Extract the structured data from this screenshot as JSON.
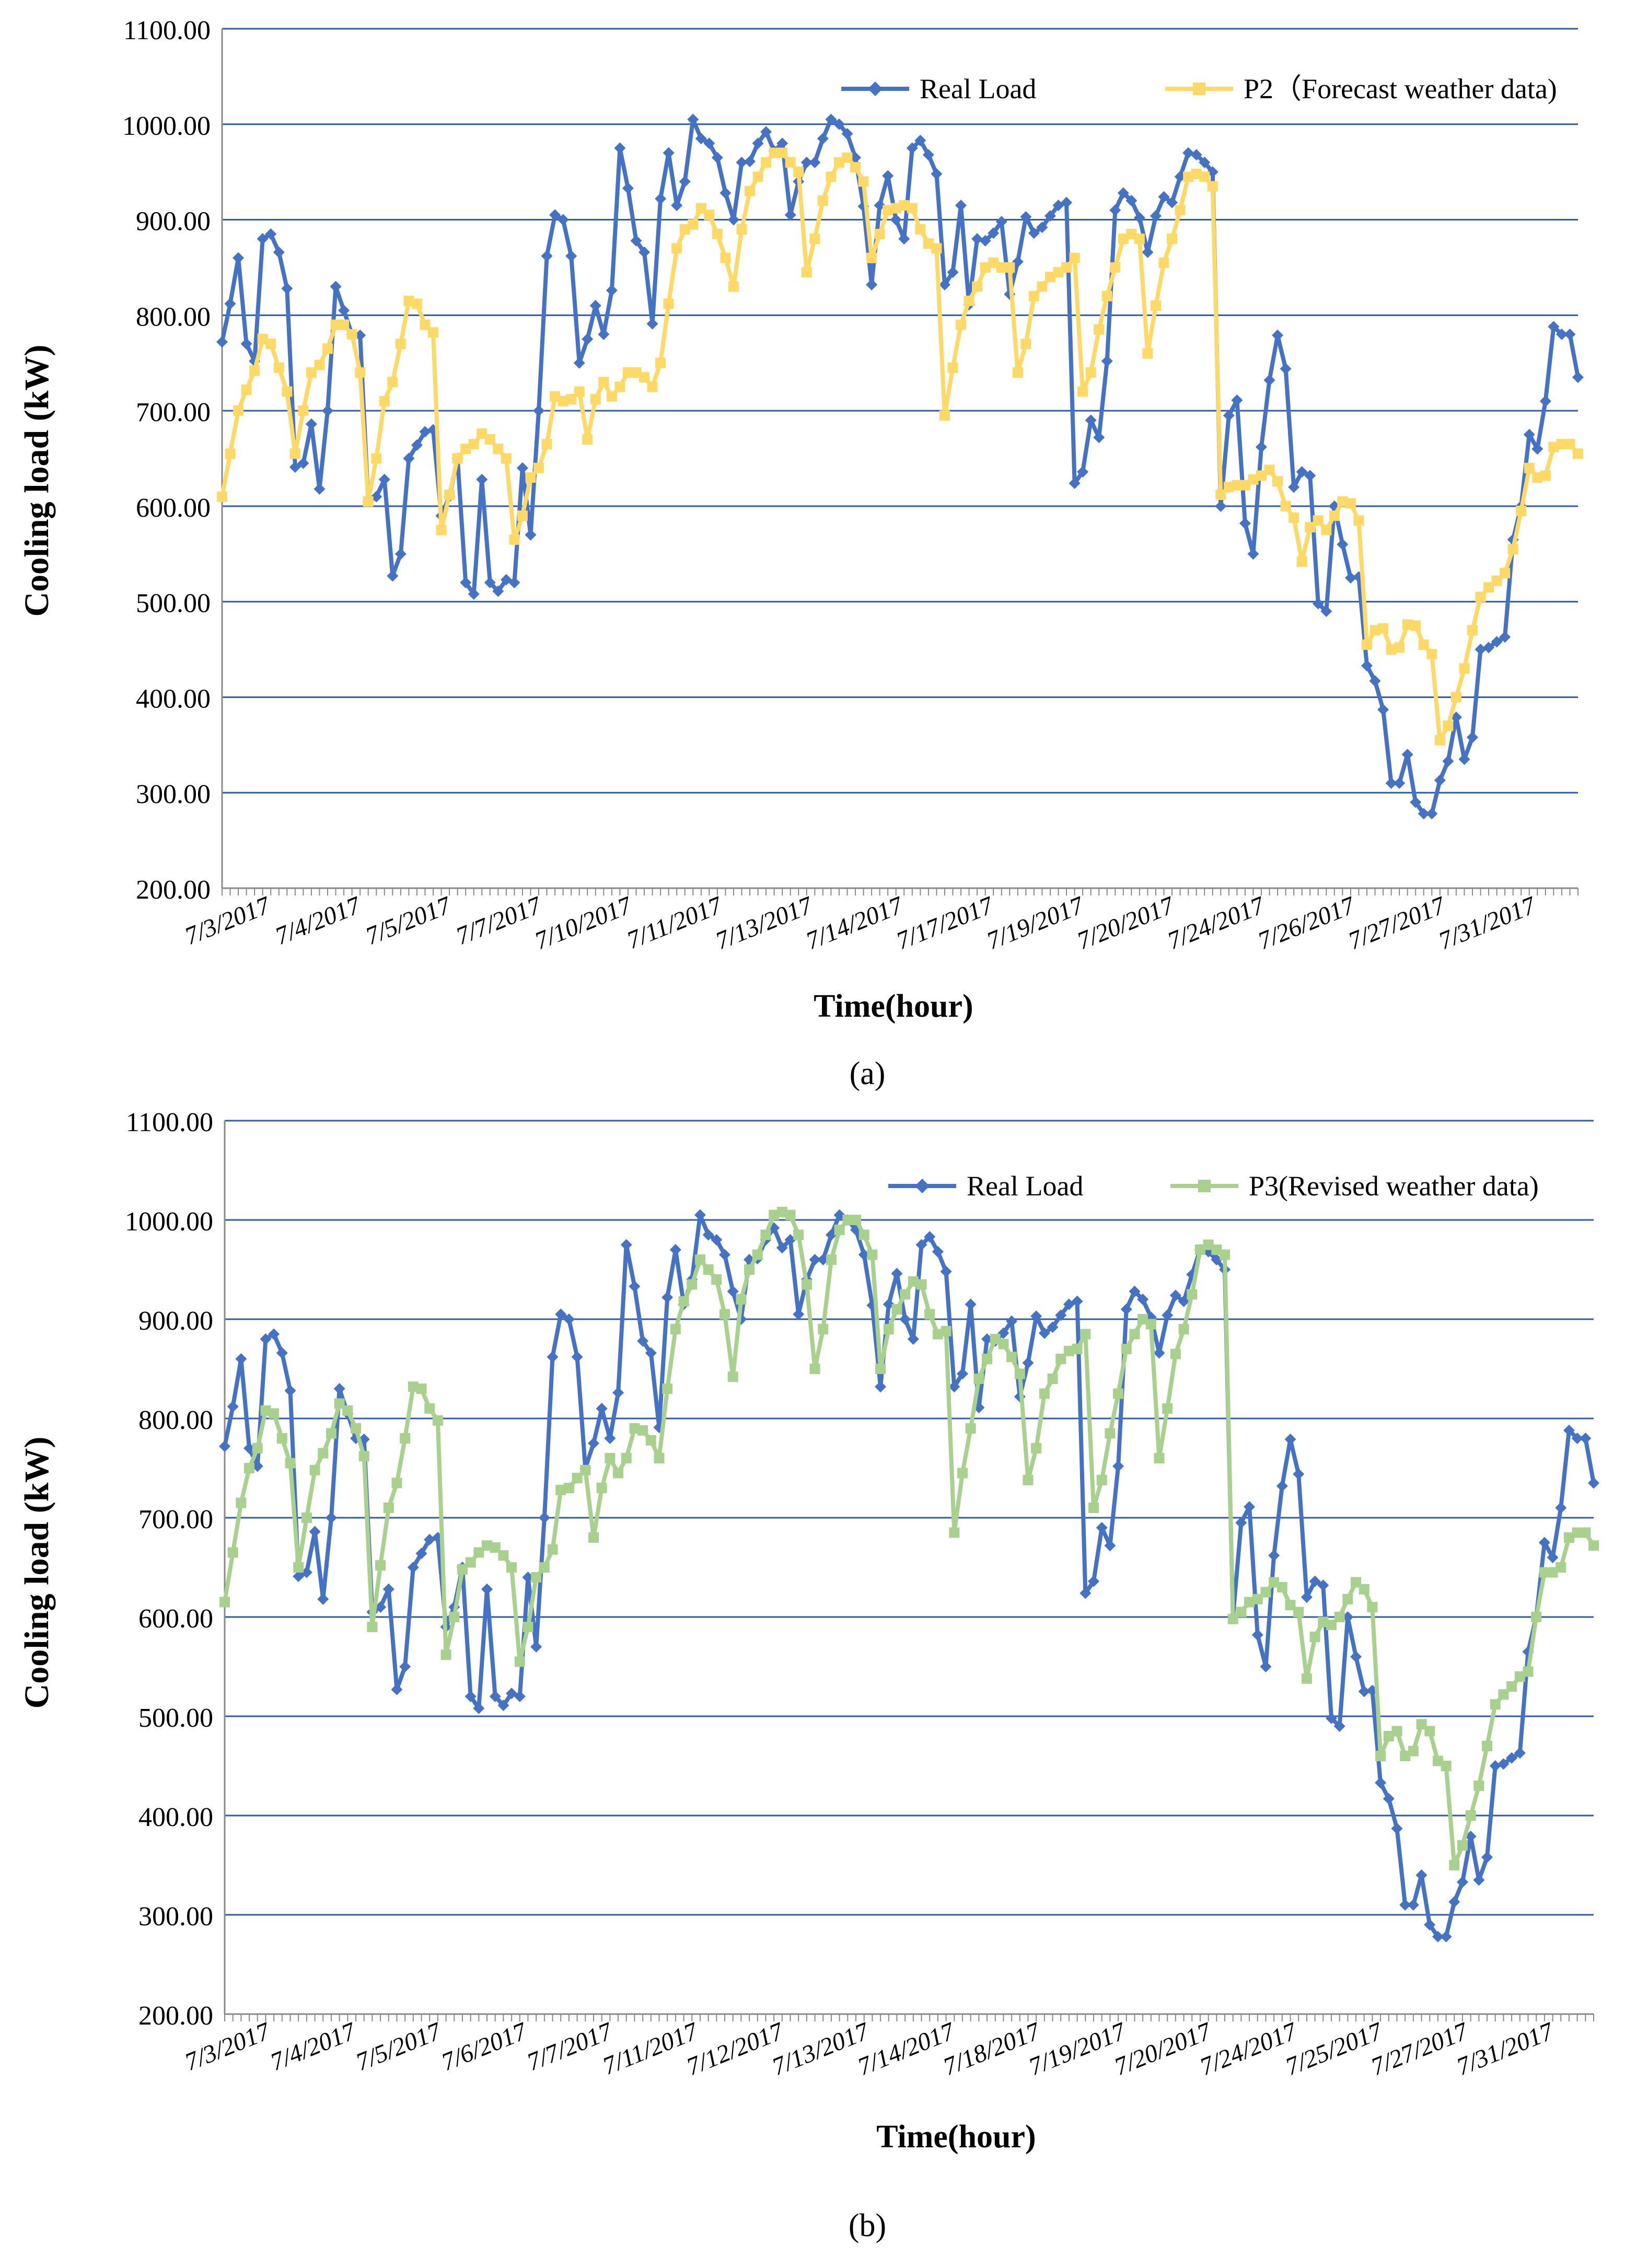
{
  "chart_data": [
    {
      "type": "line",
      "panel_label": "(a)",
      "xlabel": "Time(hour)",
      "ylabel": "Cooling  load (kW)",
      "ylim": [
        200,
        1100
      ],
      "yticks": [
        "200.00",
        "300.00",
        "400.00",
        "500.00",
        "600.00",
        "700.00",
        "800.00",
        "900.00",
        "1000.00",
        "1100.00"
      ],
      "ytick_values": [
        200,
        300,
        400,
        500,
        600,
        700,
        800,
        900,
        1000,
        1100
      ],
      "grid": true,
      "legend_position": "top-right",
      "n_points": 168,
      "date_labels": [
        "7/3/2017",
        "7/4/2017",
        "7/5/2017",
        "7/7/2017",
        "7/10/2017",
        "7/11/2017",
        "7/13/2017",
        "7/14/2017",
        "7/17/2017",
        "7/19/2017",
        "7/20/2017",
        "7/24/2017",
        "7/26/2017",
        "7/27/2017",
        "7/31/2017"
      ],
      "series": [
        {
          "name": "Real Load",
          "color": "#4472C4",
          "marker": "diamond",
          "values": [
            772,
            812,
            860,
            770,
            752,
            880,
            885,
            866,
            828,
            641,
            645,
            686,
            618,
            700,
            830,
            805,
            780,
            779,
            605,
            610,
            628,
            527,
            550,
            650,
            664,
            678,
            680,
            590,
            610,
            650,
            520,
            508,
            628,
            520,
            511,
            523,
            520,
            640,
            570,
            700,
            862,
            905,
            900,
            862,
            750,
            775,
            810,
            780,
            826,
            975,
            933,
            878,
            866,
            791,
            922,
            970,
            915,
            940,
            1005,
            985,
            980,
            965,
            928,
            900,
            960,
            961,
            980,
            992,
            972,
            980,
            905,
            940,
            960,
            960,
            985,
            1005,
            1000,
            990,
            965,
            914,
            832,
            915,
            946,
            900,
            880,
            975,
            983,
            968,
            948,
            832,
            845,
            915,
            811,
            880,
            878,
            886,
            898,
            822,
            856,
            903,
            886,
            892,
            904,
            915,
            918,
            624,
            636,
            690,
            672,
            752,
            910,
            928,
            920,
            902,
            866,
            904,
            924,
            918,
            945,
            970,
            968,
            960,
            950,
            600,
            695,
            711,
            582,
            550,
            662,
            732,
            779,
            744,
            620,
            636,
            632,
            498,
            490,
            600,
            560,
            525,
            526,
            433,
            417,
            387,
            310,
            310,
            340,
            290,
            278,
            278,
            313,
            333,
            379,
            335,
            358,
            450,
            452,
            458,
            463,
            565,
            600,
            675,
            660,
            710,
            788,
            780,
            780,
            735
          ]
        },
        {
          "name": "P2（Forecast weather data)",
          "color": "#FFD966",
          "marker": "square",
          "values": [
            610,
            655,
            700,
            722,
            742,
            775,
            770,
            745,
            720,
            655,
            700,
            740,
            748,
            765,
            790,
            790,
            780,
            740,
            605,
            650,
            710,
            730,
            770,
            815,
            812,
            790,
            782,
            575,
            612,
            650,
            660,
            665,
            676,
            670,
            660,
            650,
            565,
            590,
            630,
            640,
            665,
            715,
            710,
            712,
            720,
            670,
            712,
            730,
            715,
            725,
            740,
            740,
            735,
            725,
            750,
            812,
            870,
            890,
            895,
            912,
            905,
            885,
            860,
            830,
            890,
            930,
            945,
            960,
            970,
            970,
            960,
            950,
            845,
            880,
            920,
            945,
            960,
            965,
            955,
            940,
            860,
            885,
            910,
            912,
            915,
            912,
            890,
            875,
            870,
            695,
            745,
            790,
            815,
            830,
            850,
            855,
            850,
            850,
            740,
            770,
            820,
            830,
            840,
            845,
            850,
            860,
            720,
            740,
            785,
            820,
            850,
            880,
            885,
            880,
            760,
            810,
            855,
            880,
            910,
            945,
            948,
            945,
            935,
            612,
            620,
            622,
            622,
            628,
            632,
            638,
            626,
            600,
            588,
            542,
            578,
            585,
            575,
            590,
            605,
            603,
            585,
            455,
            470,
            472,
            450,
            452,
            476,
            475,
            455,
            445,
            355,
            370,
            400,
            430,
            470,
            505,
            515,
            522,
            530,
            555,
            595,
            640,
            630,
            632,
            662,
            665,
            665,
            655
          ]
        }
      ]
    },
    {
      "type": "line",
      "panel_label": "(b)",
      "xlabel": "Time(hour)",
      "ylabel": "Cooling  load (kW)",
      "ylim": [
        200,
        1100
      ],
      "yticks": [
        "200.00",
        "300.00",
        "400.00",
        "500.00",
        "600.00",
        "700.00",
        "800.00",
        "900.00",
        "1000.00",
        "1100.00"
      ],
      "ytick_values": [
        200,
        300,
        400,
        500,
        600,
        700,
        800,
        900,
        1000,
        1100
      ],
      "grid": true,
      "legend_position": "top-right",
      "n_points": 168,
      "date_labels": [
        "7/3/2017",
        "7/4/2017",
        "7/5/2017",
        "7/6/2017",
        "7/7/2017",
        "7/11/2017",
        "7/12/2017",
        "7/13/2017",
        "7/14/2017",
        "7/18/2017",
        "7/19/2017",
        "7/20/2017",
        "7/24/2017",
        "7/25/2017",
        "7/27/2017",
        "7/31/2017"
      ],
      "series": [
        {
          "name": "Real Load",
          "color": "#4472C4",
          "marker": "diamond",
          "values": [
            772,
            812,
            860,
            770,
            752,
            880,
            885,
            866,
            828,
            641,
            645,
            686,
            618,
            700,
            830,
            805,
            780,
            779,
            605,
            610,
            628,
            527,
            550,
            650,
            664,
            678,
            680,
            590,
            610,
            650,
            520,
            508,
            628,
            520,
            511,
            523,
            520,
            640,
            570,
            700,
            862,
            905,
            900,
            862,
            750,
            775,
            810,
            780,
            826,
            975,
            933,
            878,
            866,
            791,
            922,
            970,
            915,
            940,
            1005,
            985,
            980,
            965,
            928,
            900,
            960,
            961,
            980,
            992,
            972,
            980,
            905,
            940,
            960,
            960,
            985,
            1005,
            1000,
            990,
            965,
            914,
            832,
            915,
            946,
            900,
            880,
            975,
            983,
            968,
            948,
            832,
            845,
            915,
            811,
            880,
            878,
            886,
            898,
            822,
            856,
            903,
            886,
            892,
            904,
            915,
            918,
            624,
            636,
            690,
            672,
            752,
            910,
            928,
            920,
            902,
            866,
            904,
            924,
            918,
            945,
            970,
            968,
            960,
            950,
            600,
            695,
            711,
            582,
            550,
            662,
            732,
            779,
            744,
            620,
            636,
            632,
            498,
            490,
            600,
            560,
            525,
            526,
            433,
            417,
            387,
            310,
            310,
            340,
            290,
            278,
            278,
            313,
            333,
            379,
            335,
            358,
            450,
            452,
            458,
            463,
            565,
            600,
            675,
            660,
            710,
            788,
            780,
            780,
            735
          ]
        },
        {
          "name": "P3(Revised weather data)",
          "color": "#A9D18E",
          "marker": "square",
          "values": [
            615,
            665,
            715,
            750,
            770,
            808,
            805,
            780,
            755,
            650,
            700,
            748,
            765,
            785,
            815,
            808,
            790,
            762,
            590,
            652,
            710,
            735,
            780,
            832,
            830,
            810,
            798,
            562,
            600,
            648,
            655,
            665,
            672,
            670,
            662,
            650,
            555,
            590,
            640,
            650,
            668,
            728,
            730,
            740,
            748,
            680,
            730,
            760,
            745,
            760,
            790,
            788,
            778,
            760,
            830,
            890,
            918,
            935,
            960,
            950,
            940,
            905,
            842,
            920,
            950,
            965,
            985,
            1005,
            1008,
            1005,
            985,
            935,
            850,
            890,
            960,
            990,
            1000,
            1000,
            985,
            965,
            850,
            890,
            910,
            925,
            938,
            935,
            905,
            885,
            888,
            685,
            745,
            790,
            840,
            860,
            880,
            875,
            862,
            845,
            738,
            770,
            825,
            840,
            860,
            868,
            870,
            885,
            710,
            738,
            785,
            825,
            870,
            885,
            900,
            895,
            760,
            810,
            865,
            890,
            925,
            970,
            975,
            970,
            965,
            598,
            605,
            615,
            618,
            625,
            635,
            630,
            612,
            605,
            538,
            580,
            595,
            592,
            600,
            618,
            635,
            628,
            610,
            460,
            480,
            485,
            460,
            465,
            492,
            485,
            455,
            450,
            350,
            370,
            400,
            430,
            470,
            512,
            522,
            530,
            540,
            545,
            600,
            645,
            645,
            650,
            680,
            685,
            685,
            672
          ]
        }
      ]
    }
  ]
}
